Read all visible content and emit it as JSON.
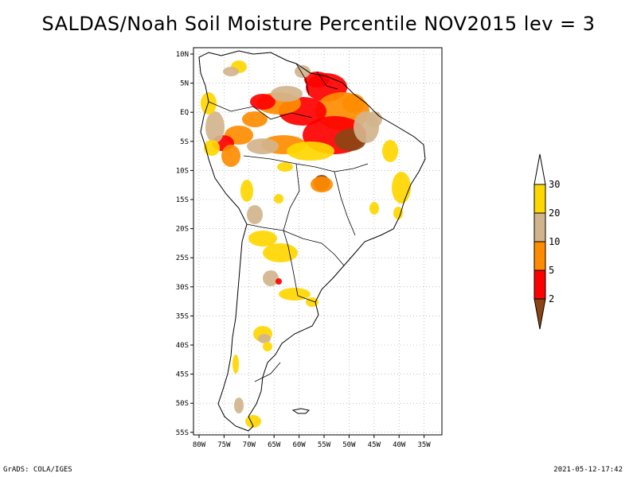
{
  "title": "SALDAS/Noah Soil Moisture Percentile NOV2015 lev = 3",
  "axes": {
    "lat_labels": [
      "10N",
      "5N",
      "EQ",
      "5S",
      "10S",
      "15S",
      "20S",
      "25S",
      "30S",
      "35S",
      "40S",
      "45S",
      "50S",
      "55S"
    ],
    "lon_labels": [
      "80W",
      "75W",
      "70W",
      "65W",
      "60W",
      "55W",
      "50W",
      "45W",
      "40W",
      "35W"
    ]
  },
  "colorbar": {
    "labels": [
      "2",
      "5",
      "10",
      "20",
      "30"
    ],
    "colors": [
      "#8b4513",
      "#ff0000",
      "#ff8c00",
      "#d2b48c",
      "#ffd700",
      "#ffffff"
    ]
  },
  "footer": {
    "left": "GrADS: COLA/IGES",
    "right": "2021-05-12-17:42"
  }
}
